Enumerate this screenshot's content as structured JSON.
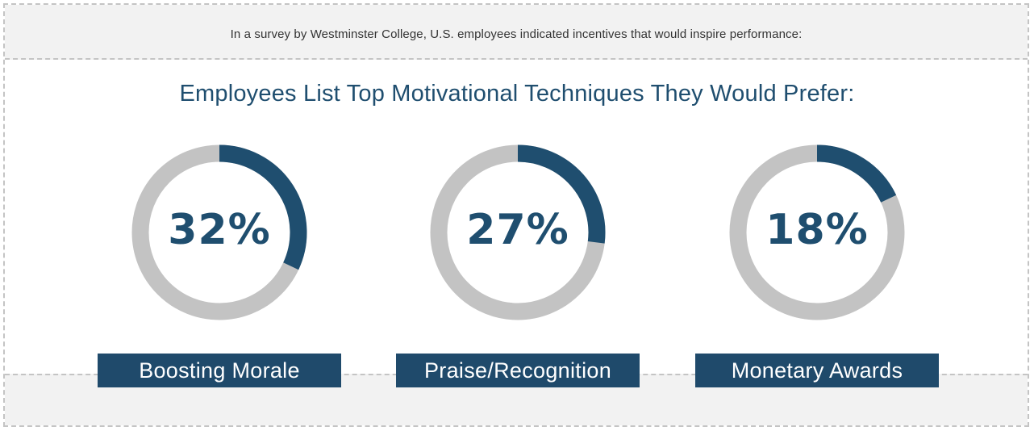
{
  "colors": {
    "accent": "#1f4e6f",
    "track": "#c3c3c3",
    "band": "#f2f2f2",
    "label_bg": "#1f4a6b"
  },
  "intro_text": "In a survey by Westminster College, U.S. employees indicated incentives that would inspire performance:",
  "chart_data": {
    "type": "pie",
    "title": "Employees List Top Motivational Techniques They Would Prefer:",
    "items": [
      {
        "label": "Boosting Morale",
        "value": 32,
        "display": "32%"
      },
      {
        "label": "Praise/Recognition",
        "value": 27,
        "display": "27%"
      },
      {
        "label": "Monetary Awards",
        "value": 18,
        "display": "18%"
      }
    ]
  }
}
